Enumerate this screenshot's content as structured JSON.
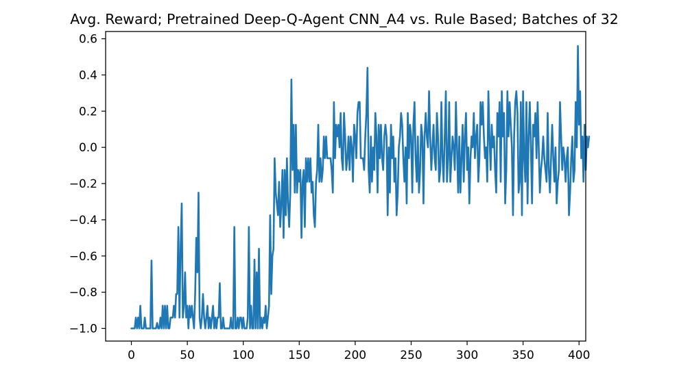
{
  "chart_data": {
    "type": "line",
    "title": "Avg. Reward; Pretrained Deep-Q-Agent CNN_A4 vs. Rule Based; Batches of 32",
    "xlabel": "",
    "ylabel": "",
    "xlim": [
      -23,
      406
    ],
    "ylim": [
      -1.07,
      0.64
    ],
    "xticks": [
      0,
      50,
      100,
      150,
      200,
      250,
      300,
      350,
      400
    ],
    "xtick_labels": [
      "0",
      "50",
      "100",
      "150",
      "200",
      "250",
      "300",
      "350",
      "400"
    ],
    "yticks": [
      -1.0,
      -0.8,
      -0.6,
      -0.4,
      -0.2,
      0.0,
      0.2,
      0.4,
      0.6
    ],
    "ytick_labels": [
      "−1.0",
      "−0.8",
      "−0.6",
      "−0.4",
      "−0.2",
      "0.0",
      "0.2",
      "0.4",
      "0.6"
    ],
    "grid": false,
    "legend": "none",
    "line_color": "#1f77b4",
    "series": [
      {
        "values": [
          -1.0,
          -1.0,
          -1.0,
          -1.0,
          -0.94,
          -1.0,
          -0.94,
          -1.0,
          -0.875,
          -1.0,
          -1.0,
          -1.0,
          -0.94,
          -1.0,
          -1.0,
          -1.0,
          -1.0,
          -1.0,
          -0.625,
          -1.0,
          -1.0,
          -1.0,
          -1.0,
          -0.97,
          -1.0,
          -1.0,
          -0.94,
          -1.0,
          -0.875,
          -1.0,
          -0.875,
          -1.0,
          -0.875,
          -1.0,
          -1.0,
          -0.94,
          -0.94,
          -0.94,
          -0.875,
          -0.94,
          -0.81,
          -0.81,
          -0.44,
          -0.94,
          -0.56,
          -0.31,
          -0.94,
          -0.875,
          -0.69,
          -0.94,
          -0.875,
          -1.0,
          -0.875,
          -0.94,
          -0.875,
          -0.94,
          -1.0,
          -0.81,
          -0.5,
          -0.69,
          -0.25,
          -0.94,
          -1.0,
          -0.94,
          -0.81,
          -0.94,
          -1.0,
          -0.94,
          -0.875,
          -1.0,
          -0.94,
          -1.0,
          -0.94,
          -0.875,
          -1.0,
          -0.94,
          -1.0,
          -0.94,
          -0.94,
          -0.75,
          -1.0,
          -1.0,
          -0.94,
          -1.0,
          -1.0,
          -1.0,
          -1.0,
          -1.0,
          -1.0,
          -0.94,
          -1.0,
          -1.0,
          -0.44,
          -1.0,
          -1.0,
          -0.94,
          -1.0,
          -0.94,
          -0.94,
          -1.0,
          -0.94,
          -1.0,
          -1.0,
          -1.0,
          -0.94,
          -0.44,
          -1.0,
          -0.875,
          -1.0,
          -1.0,
          -0.62,
          -1.0,
          -0.69,
          -1.0,
          -0.56,
          -1.0,
          -0.94,
          -1.0,
          -0.94,
          -0.97,
          -0.875,
          -1.0,
          -0.94,
          -0.875,
          -0.375,
          -0.81,
          -0.6,
          -0.56,
          -0.06,
          -0.25,
          -0.31,
          -0.375,
          -0.19,
          -0.44,
          -0.31,
          -0.125,
          -0.5,
          -0.125,
          -0.375,
          -0.06,
          -0.31,
          -0.44,
          -0.25,
          0.375,
          -0.125,
          0.125,
          -0.25,
          0.125,
          -0.25,
          -0.125,
          -0.19,
          -0.125,
          -0.5,
          -0.19,
          -0.125,
          -0.44,
          -0.06,
          -0.19,
          -0.06,
          -0.19,
          -0.06,
          -0.25,
          -0.19,
          -0.375,
          -0.44,
          -0.19,
          -0.125,
          0.125,
          -0.19,
          -0.06,
          -0.19,
          -0.125,
          0.06,
          -0.06,
          0.06,
          -0.06,
          -0.06,
          -0.06,
          -0.06,
          -0.125,
          -0.25,
          0.25,
          -0.06,
          0.125,
          0.06,
          0.125,
          0.0,
          0.19,
          -0.06,
          -0.125,
          0.19,
          0.06,
          -0.125,
          -0.06,
          0.06,
          -0.125,
          0.06,
          0.0,
          -0.19,
          0.125,
          0.06,
          -0.06,
          0.19,
          0.25,
          0.25,
          -0.06,
          -0.06,
          -0.06,
          -0.125,
          0.06,
          0.19,
          0.44,
          -0.125,
          -0.25,
          0.06,
          -0.19,
          0.0,
          -0.125,
          0.19,
          0.06,
          -0.25,
          0.125,
          -0.06,
          0.125,
          -0.06,
          -0.125,
          0.06,
          0.125,
          0.06,
          -0.375,
          0.0,
          -0.25,
          0.125,
          -0.06,
          0.06,
          -0.19,
          -0.06,
          -0.375,
          -0.25,
          0.0,
          0.06,
          0.19,
          0.125,
          -0.06,
          -0.19,
          0.0,
          -0.31,
          0.19,
          -0.06,
          0.125,
          0.06,
          -0.25,
          0.125,
          0.25,
          -0.06,
          -0.19,
          0.06,
          -0.25,
          -0.125,
          0.125,
          0.06,
          -0.31,
          0.06,
          0.19,
          0.06,
          0.0,
          0.31,
          0.06,
          -0.125,
          0.0,
          0.125,
          -0.06,
          -0.125,
          0.19,
          0.06,
          -0.19,
          -0.125,
          0.25,
          -0.06,
          -0.19,
          0.06,
          0.31,
          -0.19,
          -0.06,
          0.25,
          -0.19,
          -0.06,
          0.06,
          0.0,
          -0.125,
          0.25,
          0.0,
          -0.25,
          0.06,
          -0.25,
          -0.06,
          0.125,
          -0.19,
          0.06,
          0.19,
          -0.125,
          0.0,
          -0.31,
          -0.06,
          0.06,
          0.0,
          0.19,
          -0.06,
          0.06,
          0.125,
          -0.19,
          -0.06,
          0.25,
          0.125,
          0.25,
          0.06,
          -0.06,
          0.0,
          -0.19,
          0.31,
          0.06,
          -0.125,
          0.125,
          0.0,
          0.06,
          -0.125,
          -0.25,
          0.19,
          0.06,
          0.25,
          -0.19,
          0.31,
          0.06,
          0.19,
          -0.31,
          -0.125,
          0.31,
          0.06,
          0.25,
          0.125,
          0.0,
          -0.375,
          0.06,
          0.25,
          0.31,
          0.19,
          -0.25,
          -0.19,
          0.25,
          -0.375,
          0.31,
          -0.06,
          -0.19,
          0.25,
          -0.31,
          0.06,
          0.25,
          0.0,
          -0.31,
          0.125,
          0.06,
          0.19,
          -0.06,
          0.25,
          0.0,
          -0.25,
          -0.125,
          -0.06,
          0.06,
          -0.06,
          -0.125,
          -0.19,
          0.19,
          -0.125,
          -0.25,
          -0.06,
          0.125,
          -0.06,
          -0.19,
          0.0,
          -0.31,
          -0.19,
          -0.125,
          0.25,
          0.06,
          -0.125,
          0.0,
          -0.06,
          -0.19,
          -0.06,
          0.0,
          -0.375,
          -0.25,
          -0.06,
          0.06,
          -0.19,
          -0.125,
          0.25,
          0.0,
          0.56,
          0.125,
          0.31,
          -0.06,
          0.06,
          -0.19,
          0.125,
          -0.125,
          0.06,
          0.0,
          0.06
        ]
      }
    ]
  }
}
